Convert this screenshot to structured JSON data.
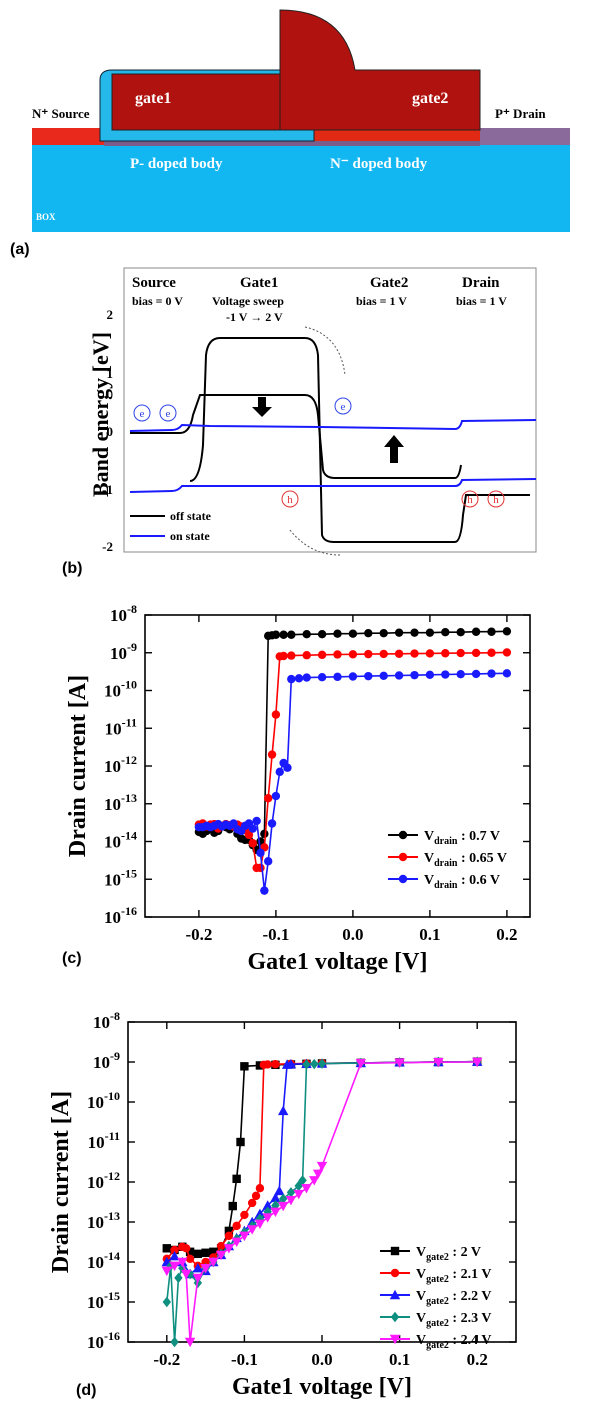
{
  "panel_a": {
    "label": "(a)",
    "source_label": "N⁺ Source",
    "drain_label": "P⁺ Drain",
    "gate1_label": "gate1",
    "gate2_label": "gate2",
    "p_body_label": "P- doped body",
    "n_body_label": "N⁻ doped body",
    "box_label": "BOX"
  },
  "panel_b": {
    "label": "(b)",
    "col_source": "Source",
    "col_gate1": "Gate1",
    "col_gate2": "Gate2",
    "col_drain": "Drain",
    "bias_source": "bias = 0 V",
    "gate1_sweep_1": "Voltage sweep",
    "gate1_sweep_2": "-1 V → 2 V",
    "bias_gate2": "bias = 1 V",
    "bias_drain": "bias = 1 V",
    "ylabel": "Band energy [eV]",
    "yticks": [
      "2",
      "1",
      "0",
      "-1",
      "-2"
    ],
    "legend_off": "off state",
    "legend_on": "on state",
    "electron": "e",
    "hole": "h",
    "colors": {
      "off": "#000000",
      "on": "#1a1aff",
      "carrier": "#2e44e6",
      "hole": "#e33333"
    }
  },
  "chart_data": [
    {
      "type": "line",
      "panel": "(c)",
      "xlabel": "Gate1 voltage [V]",
      "ylabel": "Drain current [A]",
      "xlim": [
        -0.27,
        0.23
      ],
      "ylim": [
        1e-16,
        1e-08
      ],
      "yscale": "log",
      "xticks": [
        "-0.2",
        "-0.1",
        "0.0",
        "0.1",
        "0.2"
      ],
      "yticks_exp": [
        "-8",
        "-9",
        "-10",
        "-11",
        "-12",
        "-13",
        "-14",
        "-15",
        "-16"
      ],
      "legend_position": "lower-right",
      "series": [
        {
          "legend_base": "V",
          "legend_sub": "drain",
          "legend_value": ": 0.7 V",
          "color": "#000000",
          "marker": "circle",
          "x": [
            -0.2,
            -0.195,
            -0.19,
            -0.185,
            -0.18,
            -0.175,
            -0.17,
            -0.165,
            -0.16,
            -0.155,
            -0.15,
            -0.145,
            -0.14,
            -0.135,
            -0.13,
            -0.125,
            -0.12,
            -0.115,
            -0.11,
            -0.105,
            -0.1,
            -0.09,
            -0.08,
            -0.06,
            -0.04,
            -0.02,
            0.0,
            0.02,
            0.04,
            0.06,
            0.08,
            0.1,
            0.12,
            0.14,
            0.16,
            0.18,
            0.2
          ],
          "y": [
            1.8e-14,
            1.6e-14,
            1.9e-14,
            2.2e-14,
            1.7e-14,
            1.9e-14,
            2.5e-14,
            2.4e-14,
            2.1e-14,
            2.6e-14,
            1.6e-14,
            1.2e-14,
            1.1e-14,
            1.1e-14,
            8e-15,
            6e-15,
            1e-14,
            1.6e-14,
            2.8e-09,
            2.9e-09,
            3e-09,
            3e-09,
            3e-09,
            3.1e-09,
            3.1e-09,
            3.2e-09,
            3.2e-09,
            3.3e-09,
            3.3e-09,
            3.4e-09,
            3.4e-09,
            3.4e-09,
            3.5e-09,
            3.5e-09,
            3.6e-09,
            3.6e-09,
            3.7e-09
          ]
        },
        {
          "legend_base": "V",
          "legend_sub": "drain",
          "legend_value": ": 0.65 V",
          "color": "#ff0000",
          "marker": "circle",
          "x": [
            -0.2,
            -0.195,
            -0.19,
            -0.185,
            -0.18,
            -0.175,
            -0.17,
            -0.165,
            -0.16,
            -0.155,
            -0.15,
            -0.145,
            -0.14,
            -0.135,
            -0.13,
            -0.125,
            -0.12,
            -0.115,
            -0.11,
            -0.105,
            -0.1,
            -0.095,
            -0.09,
            -0.08,
            -0.06,
            -0.04,
            -0.02,
            0.0,
            0.02,
            0.04,
            0.06,
            0.08,
            0.1,
            0.12,
            0.14,
            0.16,
            0.18,
            0.2
          ],
          "y": [
            2.8e-14,
            3e-14,
            2.5e-14,
            2.8e-14,
            2.9e-14,
            2.2e-14,
            2.6e-14,
            2.9e-14,
            2.7e-14,
            2.5e-14,
            2.8e-14,
            2.5e-14,
            2e-14,
            1.5e-14,
            9e-15,
            2e-15,
            2e-15,
            7e-15,
            1.4e-13,
            2e-12,
            2.3e-11,
            8e-10,
            8.2e-10,
            8.4e-10,
            8.6e-10,
            8.8e-10,
            9e-10,
            9.1e-10,
            9.2e-10,
            9.3e-10,
            9.4e-10,
            9.5e-10,
            9.6e-10,
            9.7e-10,
            9.8e-10,
            9.9e-10,
            1e-09,
            1.02e-09
          ]
        },
        {
          "legend_base": "V",
          "legend_sub": "drain",
          "legend_value": ": 0.6 V",
          "color": "#1a1aff",
          "marker": "circle",
          "x": [
            -0.2,
            -0.195,
            -0.19,
            -0.185,
            -0.18,
            -0.175,
            -0.17,
            -0.165,
            -0.16,
            -0.155,
            -0.15,
            -0.145,
            -0.14,
            -0.135,
            -0.13,
            -0.125,
            -0.12,
            -0.115,
            -0.11,
            -0.105,
            -0.1,
            -0.095,
            -0.09,
            -0.085,
            -0.08,
            -0.07,
            -0.06,
            -0.04,
            -0.02,
            0.0,
            0.02,
            0.04,
            0.06,
            0.08,
            0.1,
            0.12,
            0.14,
            0.16,
            0.18,
            0.2
          ],
          "y": [
            2.4e-14,
            2.4e-14,
            2.6e-14,
            2.4e-14,
            2.6e-14,
            2.9e-14,
            2.5e-14,
            2.8e-14,
            2.6e-14,
            3e-14,
            2.1e-14,
            1.9e-14,
            2.6e-14,
            3e-14,
            2.2e-14,
            3.5e-14,
            5e-15,
            5e-16,
            3e-15,
            3e-14,
            1.6e-13,
            7e-13,
            1.2e-12,
            9e-13,
            2e-10,
            2.1e-10,
            2.2e-10,
            2.25e-10,
            2.3e-10,
            2.35e-10,
            2.4e-10,
            2.45e-10,
            2.5e-10,
            2.55e-10,
            2.6e-10,
            2.65e-10,
            2.7e-10,
            2.75e-10,
            2.8e-10,
            2.85e-10
          ]
        }
      ]
    },
    {
      "type": "line",
      "panel": "(d)",
      "xlabel": "Gate1 voltage [V]",
      "ylabel": "Drain current [A]",
      "xlim": [
        -0.25,
        0.25
      ],
      "ylim": [
        1e-16,
        1e-08
      ],
      "yscale": "log",
      "xticks": [
        "-0.2",
        "-0.1",
        "0.0",
        "0.1",
        "0.2"
      ],
      "yticks_exp": [
        "-8",
        "-9",
        "-10",
        "-11",
        "-12",
        "-13",
        "-14",
        "-15",
        "-16"
      ],
      "legend_position": "lower-right",
      "series": [
        {
          "legend_base": "V",
          "legend_sub": "gate2",
          "legend_value": ": 2 V",
          "color": "#000000",
          "marker": "square",
          "x": [
            -0.2,
            -0.19,
            -0.18,
            -0.17,
            -0.16,
            -0.15,
            -0.14,
            -0.13,
            -0.12,
            -0.115,
            -0.11,
            -0.105,
            -0.1,
            -0.08,
            -0.06,
            -0.04,
            -0.02,
            0.0,
            0.05,
            0.1,
            0.15,
            0.2
          ],
          "y": [
            2.2e-14,
            2e-14,
            2.4e-14,
            1.8e-14,
            1.6e-14,
            1.7e-14,
            1.8e-14,
            2.2e-14,
            6e-14,
            2.5e-13,
            1.2e-12,
            1e-11,
            7.8e-10,
            8.2e-10,
            8.5e-10,
            8.7e-10,
            9e-10,
            9.2e-10,
            9.5e-10,
            9.8e-10,
            1e-09,
            1.02e-09
          ]
        },
        {
          "legend_base": "V",
          "legend_sub": "gate2",
          "legend_value": ": 2.1 V",
          "color": "#ff0000",
          "marker": "circle",
          "x": [
            -0.2,
            -0.19,
            -0.18,
            -0.175,
            -0.17,
            -0.16,
            -0.15,
            -0.14,
            -0.13,
            -0.12,
            -0.11,
            -0.1,
            -0.09,
            -0.085,
            -0.08,
            -0.075,
            -0.07,
            -0.06,
            -0.04,
            -0.02,
            0.0,
            0.05,
            0.1,
            0.15,
            0.2
          ],
          "y": [
            1.2e-14,
            2e-14,
            2.4e-14,
            2.2e-14,
            1.2e-14,
            8e-15,
            1e-14,
            1.3e-14,
            2.5e-14,
            4.5e-14,
            8e-14,
            1.5e-13,
            3e-13,
            4.5e-13,
            7e-13,
            8.5e-10,
            8.7e-10,
            8.8e-10,
            9e-10,
            9.2e-10,
            9.3e-10,
            9.5e-10,
            9.7e-10,
            1e-09,
            1.02e-09
          ]
        },
        {
          "legend_base": "V",
          "legend_sub": "gate2",
          "legend_value": ": 2.2 V",
          "color": "#1a1aff",
          "marker": "triangle-up",
          "x": [
            -0.2,
            -0.19,
            -0.18,
            -0.17,
            -0.16,
            -0.15,
            -0.14,
            -0.13,
            -0.12,
            -0.11,
            -0.1,
            -0.09,
            -0.08,
            -0.07,
            -0.06,
            -0.055,
            -0.05,
            -0.045,
            -0.04,
            -0.02,
            0.0,
            0.05,
            0.1,
            0.15,
            0.2
          ],
          "y": [
            1e-14,
            1.4e-14,
            1e-14,
            5e-15,
            7e-15,
            6e-15,
            1e-14,
            1.5e-14,
            2.5e-14,
            4e-14,
            6e-14,
            1e-13,
            1.6e-13,
            2.6e-13,
            4e-13,
            6e-13,
            6e-11,
            8.6e-10,
            8.8e-10,
            9e-10,
            9.2e-10,
            9.5e-10,
            9.8e-10,
            1e-09,
            1.02e-09
          ]
        },
        {
          "legend_base": "V",
          "legend_sub": "gate2",
          "legend_value": ": 2.3 V",
          "color": "#0e8f80",
          "marker": "diamond",
          "x": [
            -0.2,
            -0.195,
            -0.19,
            -0.185,
            -0.18,
            -0.17,
            -0.16,
            -0.15,
            -0.14,
            -0.13,
            -0.12,
            -0.11,
            -0.1,
            -0.09,
            -0.08,
            -0.07,
            -0.06,
            -0.05,
            -0.04,
            -0.03,
            -0.025,
            -0.02,
            -0.01,
            0.0,
            0.05,
            0.1,
            0.15,
            0.2
          ],
          "y": [
            1e-15,
            8e-15,
            1e-16,
            4e-15,
            7e-15,
            5e-15,
            3e-15,
            7e-15,
            1e-14,
            1.6e-14,
            2.5e-14,
            3.8e-14,
            5.5e-14,
            8e-14,
            1.2e-13,
            1.8e-13,
            2.6e-13,
            3.8e-13,
            5.5e-13,
            8e-13,
            1.1e-12,
            8.7e-10,
            8.9e-10,
            9.1e-10,
            9.4e-10,
            9.7e-10,
            1e-09,
            1.02e-09
          ]
        },
        {
          "legend_base": "V",
          "legend_sub": "gate2",
          "legend_value": ": 2.4 V",
          "color": "#ff1aff",
          "marker": "triangle-down",
          "x": [
            -0.2,
            -0.19,
            -0.18,
            -0.175,
            -0.17,
            -0.16,
            -0.15,
            -0.14,
            -0.13,
            -0.12,
            -0.11,
            -0.1,
            -0.09,
            -0.08,
            -0.07,
            -0.06,
            -0.05,
            -0.04,
            -0.03,
            -0.02,
            -0.01,
            -0.005,
            0.0,
            0.05,
            0.1,
            0.15,
            0.2
          ],
          "y": [
            6e-15,
            8e-15,
            1e-14,
            5e-15,
            1e-16,
            4e-15,
            7e-15,
            1e-14,
            1.5e-14,
            2.2e-14,
            3.2e-14,
            4.5e-14,
            6.5e-14,
            9e-14,
            1.3e-13,
            1.8e-13,
            2.5e-13,
            3.5e-13,
            5e-13,
            7e-13,
            1.1e-12,
            1.6e-12,
            2.5e-12,
            9.3e-10,
            9.6e-10,
            9.9e-10,
            1e-09
          ]
        }
      ]
    }
  ]
}
